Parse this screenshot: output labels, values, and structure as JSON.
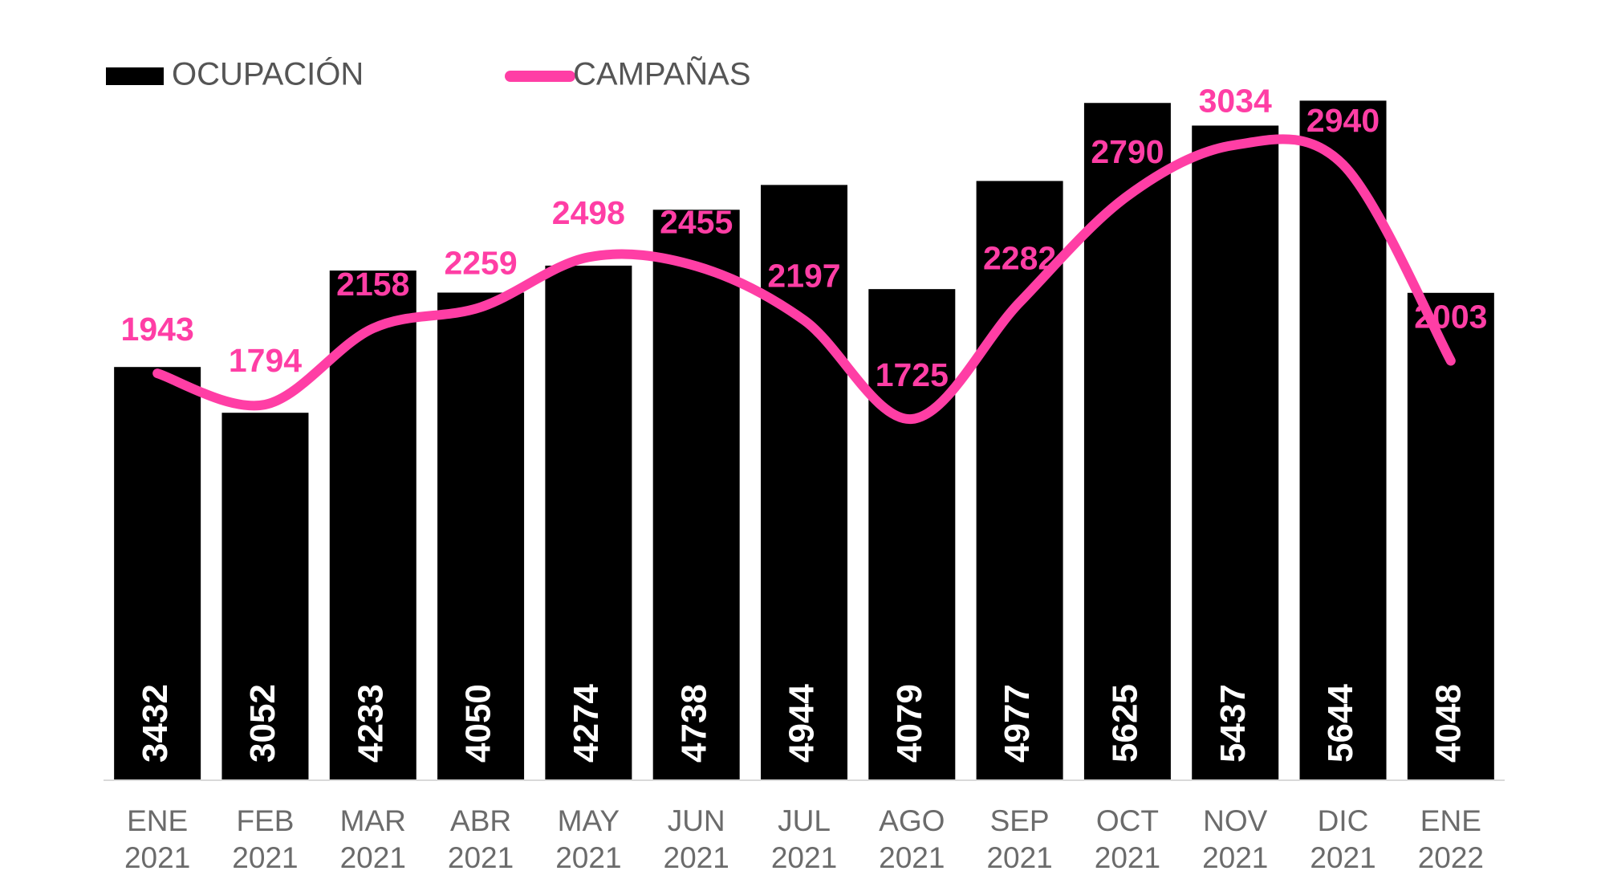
{
  "chart_data": {
    "type": "bar-line",
    "categories": [
      "ENE 2021",
      "FEB 2021",
      "MAR 2021",
      "ABR 2021",
      "MAY 2021",
      "JUN 2021",
      "JUL 2021",
      "AGO 2021",
      "SEP 2021",
      "OCT 2021",
      "NOV 2021",
      "DIC 2021",
      "ENE 2022"
    ],
    "series": [
      {
        "name": "OCUPACIÓN",
        "type": "bar",
        "color": "#000000",
        "values": [
          3432,
          3052,
          4233,
          4050,
          4274,
          4738,
          4944,
          4079,
          4977,
          5625,
          5437,
          5644,
          4048
        ]
      },
      {
        "name": "CAMPAÑAS",
        "type": "line",
        "axis": "y2",
        "color": "#ff3ea5",
        "values": [
          1943,
          1794,
          2158,
          2259,
          2498,
          2455,
          2197,
          1725,
          2282,
          2790,
          3034,
          2940,
          2003
        ]
      }
    ],
    "ylim": [
      0,
      6000
    ],
    "y2lim": [
      0,
      3450
    ],
    "legend": "top-left",
    "grid": false
  }
}
